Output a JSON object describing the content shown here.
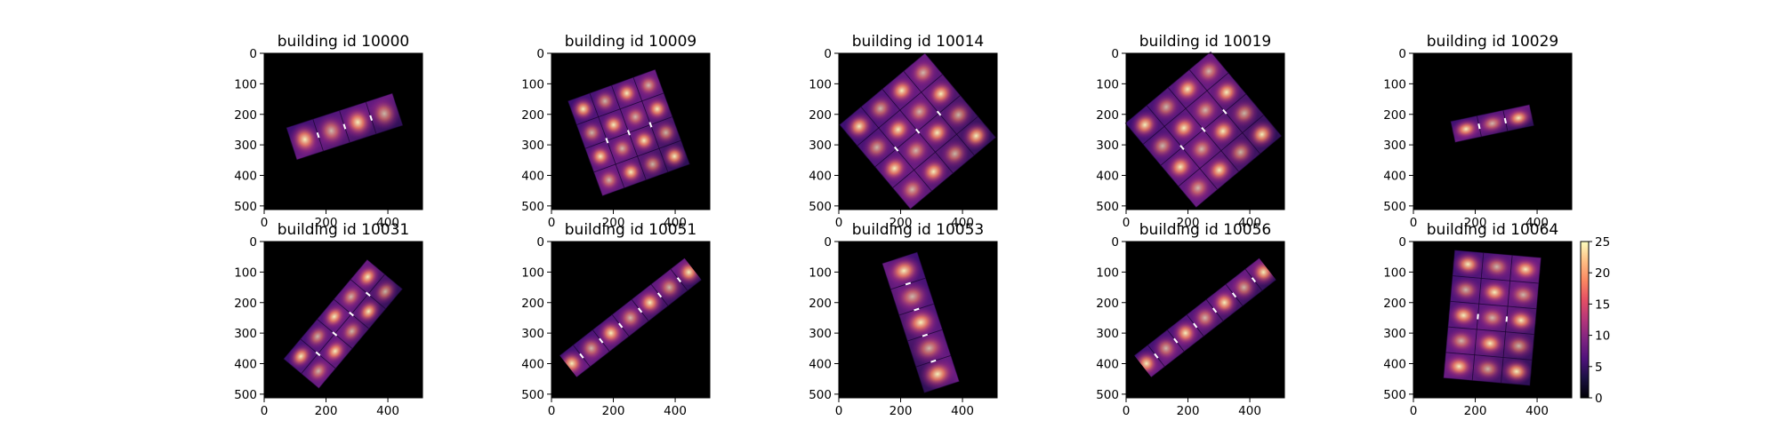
{
  "chart_data": {
    "type": "heatmap",
    "layout": {
      "rows": 2,
      "cols": 5
    },
    "colormap": "magma",
    "colors": {
      "background": "#000000",
      "low": "#2b0f54",
      "mid": "#b73779",
      "high": "#fcfdbf"
    },
    "colorbar": {
      "min": 0,
      "max": 25,
      "ticks": [
        0,
        5,
        10,
        15,
        20,
        25
      ],
      "placement": "right"
    },
    "axes": {
      "xlim": [
        0,
        512
      ],
      "ylim": [
        512,
        0
      ],
      "xticks": [
        0,
        200,
        400
      ],
      "yticks": [
        0,
        100,
        200,
        300,
        400,
        500
      ]
    },
    "panels": [
      {
        "title": "building id 10000",
        "footprint": {
          "center": [
            260,
            240
          ],
          "size": [
            360,
            110
          ],
          "angle": -18
        }
      },
      {
        "title": "building id 10009",
        "footprint": {
          "center": [
            250,
            260
          ],
          "size": [
            300,
            330
          ],
          "angle": -20
        }
      },
      {
        "title": "building id 10014",
        "footprint": {
          "center": [
            255,
            255
          ],
          "size": [
            360,
            360
          ],
          "angle": -40
        }
      },
      {
        "title": "building id 10019",
        "footprint": {
          "center": [
            250,
            250
          ],
          "size": [
            360,
            360
          ],
          "angle": -40
        }
      },
      {
        "title": "building id 10029",
        "footprint": {
          "center": [
            255,
            230
          ],
          "size": [
            260,
            70
          ],
          "angle": -12
        }
      },
      {
        "title": "building id 10031",
        "footprint": {
          "center": [
            255,
            270
          ],
          "size": [
            420,
            150
          ],
          "angle": -50
        }
      },
      {
        "title": "building id 10051",
        "footprint": {
          "center": [
            255,
            250
          ],
          "size": [
            560,
            90
          ],
          "angle": -38
        }
      },
      {
        "title": "building id 10053",
        "footprint": {
          "center": [
            265,
            265
          ],
          "size": [
            440,
            120
          ],
          "angle": 72
        }
      },
      {
        "title": "building id 10056",
        "footprint": {
          "center": [
            255,
            250
          ],
          "size": [
            560,
            90
          ],
          "angle": -38
        }
      },
      {
        "title": "building id 10064",
        "footprint": {
          "center": [
            255,
            250
          ],
          "size": [
            280,
            420
          ],
          "angle": 5
        }
      }
    ]
  }
}
